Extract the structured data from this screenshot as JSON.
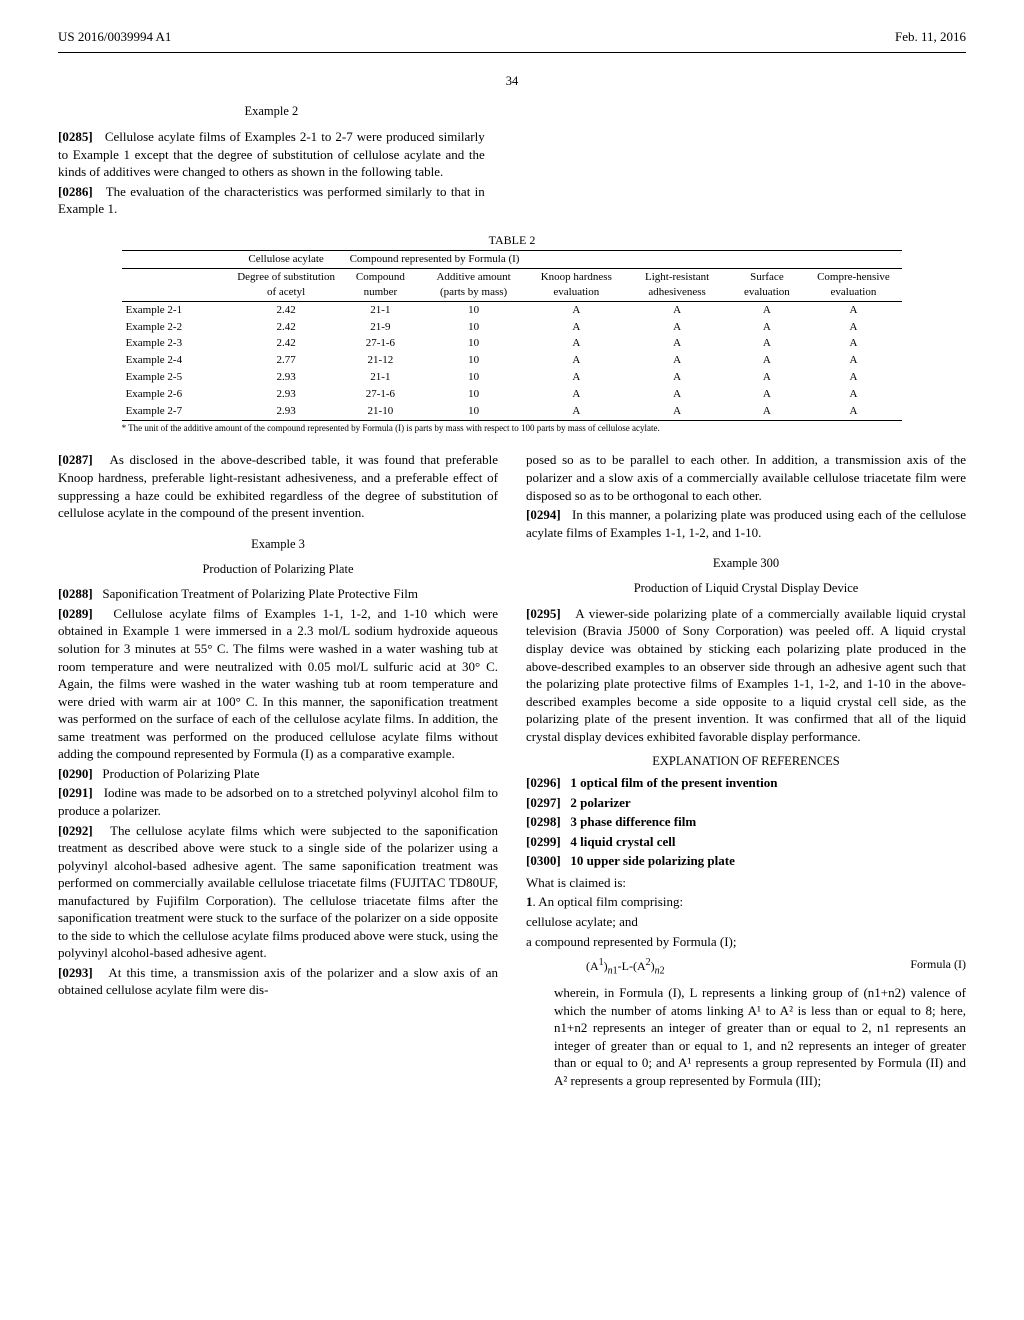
{
  "header": {
    "left": "US 2016/0039994 A1",
    "right": "Feb. 11, 2016"
  },
  "page_number": "34",
  "example2": {
    "title": "Example 2",
    "p0285_num": "[0285]",
    "p0285": "Cellulose acylate films of Examples 2-1 to 2-7 were produced similarly to Example 1 except that the degree of substitution of cellulose acylate and the kinds of additives were changed to others as shown in the following table.",
    "p0286_num": "[0286]",
    "p0286": "The evaluation of the characteristics was performed similarly to that in Example 1."
  },
  "table2": {
    "caption": "TABLE 2",
    "group1": "Cellulose acylate",
    "group2": "Compound represented by Formula (I)",
    "col1": "Degree of substitution of acetyl",
    "col2": "Compound number",
    "col3": "Additive amount (parts by mass)",
    "col4": "Knoop hardness evaluation",
    "col5": "Light-resistant adhesiveness",
    "col6": "Surface evaluation",
    "col7": "Compre-hensive evaluation",
    "rows": [
      {
        "label": "Example 2-1",
        "c1": "2.42",
        "c2": "21-1",
        "c3": "10",
        "c4": "A",
        "c5": "A",
        "c6": "A",
        "c7": "A"
      },
      {
        "label": "Example 2-2",
        "c1": "2.42",
        "c2": "21-9",
        "c3": "10",
        "c4": "A",
        "c5": "A",
        "c6": "A",
        "c7": "A"
      },
      {
        "label": "Example 2-3",
        "c1": "2.42",
        "c2": "27-1-6",
        "c3": "10",
        "c4": "A",
        "c5": "A",
        "c6": "A",
        "c7": "A"
      },
      {
        "label": "Example 2-4",
        "c1": "2.77",
        "c2": "21-12",
        "c3": "10",
        "c4": "A",
        "c5": "A",
        "c6": "A",
        "c7": "A"
      },
      {
        "label": "Example 2-5",
        "c1": "2.93",
        "c2": "21-1",
        "c3": "10",
        "c4": "A",
        "c5": "A",
        "c6": "A",
        "c7": "A"
      },
      {
        "label": "Example 2-6",
        "c1": "2.93",
        "c2": "27-1-6",
        "c3": "10",
        "c4": "A",
        "c5": "A",
        "c6": "A",
        "c7": "A"
      },
      {
        "label": "Example 2-7",
        "c1": "2.93",
        "c2": "21-10",
        "c3": "10",
        "c4": "A",
        "c5": "A",
        "c6": "A",
        "c7": "A"
      }
    ],
    "footnote": "* The unit of the additive amount of the compound represented by Formula (I) is parts by mass with respect to 100 parts by mass of cellulose acylate."
  },
  "left": {
    "p0287_num": "[0287]",
    "p0287": "As disclosed in the above-described table, it was found that preferable Knoop hardness, preferable light-resistant adhesiveness, and a preferable effect of suppressing a haze could be exhibited regardless of the degree of substitution of cellulose acylate in the compound of the present invention.",
    "ex3_title": "Example 3",
    "ex3_sub": "Production of Polarizing Plate",
    "p0288_num": "[0288]",
    "p0288": "Saponification Treatment of Polarizing Plate Protective Film",
    "p0289_num": "[0289]",
    "p0289": "Cellulose acylate films of Examples 1-1, 1-2, and 1-10 which were obtained in Example 1 were immersed in a 2.3 mol/L sodium hydroxide aqueous solution for 3 minutes at 55° C. The films were washed in a water washing tub at room temperature and were neutralized with 0.05 mol/L sulfuric acid at 30° C. Again, the films were washed in the water washing tub at room temperature and were dried with warm air at 100° C. In this manner, the saponification treatment was performed on the surface of each of the cellulose acylate films. In addition, the same treatment was performed on the produced cellulose acylate films without adding the compound represented by Formula (I) as a comparative example.",
    "p0290_num": "[0290]",
    "p0290": "Production of Polarizing Plate",
    "p0291_num": "[0291]",
    "p0291": "Iodine was made to be adsorbed on to a stretched polyvinyl alcohol film to produce a polarizer.",
    "p0292_num": "[0292]",
    "p0292": "The cellulose acylate films which were subjected to the saponification treatment as described above were stuck to a single side of the polarizer using a polyvinyl alcohol-based adhesive agent. The same saponification treatment was performed on commercially available cellulose triacetate films (FUJITAC TD80UF, manufactured by Fujifilm Corporation). The cellulose triacetate films after the saponification treatment were stuck to the surface of the polarizer on a side opposite to the side to which the cellulose acylate films produced above were stuck, using the polyvinyl alcohol-based adhesive agent.",
    "p0293_num": "[0293]",
    "p0293": "At this time, a transmission axis of the polarizer and a slow axis of an obtained cellulose acylate film were dis-"
  },
  "right": {
    "cont": "posed so as to be parallel to each other. In addition, a transmission axis of the polarizer and a slow axis of a commercially available cellulose triacetate film were disposed so as to be orthogonal to each other.",
    "p0294_num": "[0294]",
    "p0294": "In this manner, a polarizing plate was produced using each of the cellulose acylate films of Examples 1-1, 1-2, and 1-10.",
    "ex300_title": "Example 300",
    "ex300_sub": "Production of Liquid Crystal Display Device",
    "p0295_num": "[0295]",
    "p0295": "A viewer-side polarizing plate of a commercially available liquid crystal television (Bravia J5000 of Sony Corporation) was peeled off. A liquid crystal display device was obtained by sticking each polarizing plate produced in the above-described examples to an observer side through an adhesive agent such that the polarizing plate protective films of Examples 1-1, 1-2, and 1-10 in the above-described examples become a side opposite to a liquid crystal cell side, as the polarizing plate of the present invention. It was confirmed that all of the liquid crystal display devices exhibited favorable display performance.",
    "refs_title": "EXPLANATION OF REFERENCES",
    "r0296_num": "[0296]",
    "r0296": "1 optical film of the present invention",
    "r0297_num": "[0297]",
    "r0297": "2 polarizer",
    "r0298_num": "[0298]",
    "r0298": "3 phase difference film",
    "r0299_num": "[0299]",
    "r0299": "4 liquid crystal cell",
    "r0300_num": "[0300]",
    "r0300": "10 upper side polarizing plate",
    "claims_intro": "What is claimed is:",
    "claim1_num": "1",
    "claim1_a": ". An optical film comprising:",
    "claim1_b": "cellulose acylate; and",
    "claim1_c": "a compound represented by Formula (I);",
    "formula_label": "Formula (I)",
    "claim1_where": "wherein, in Formula (I), L represents a linking group of (n1+n2) valence of which the number of atoms linking A¹ to A² is less than or equal to 8; here, n1+n2 represents an integer of greater than or equal to 2, n1 represents an integer of greater than or equal to 1, and n2 represents an integer of greater than or equal to 0; and A¹ represents a group represented by Formula (II) and A² represents a group represented by Formula (III);"
  }
}
